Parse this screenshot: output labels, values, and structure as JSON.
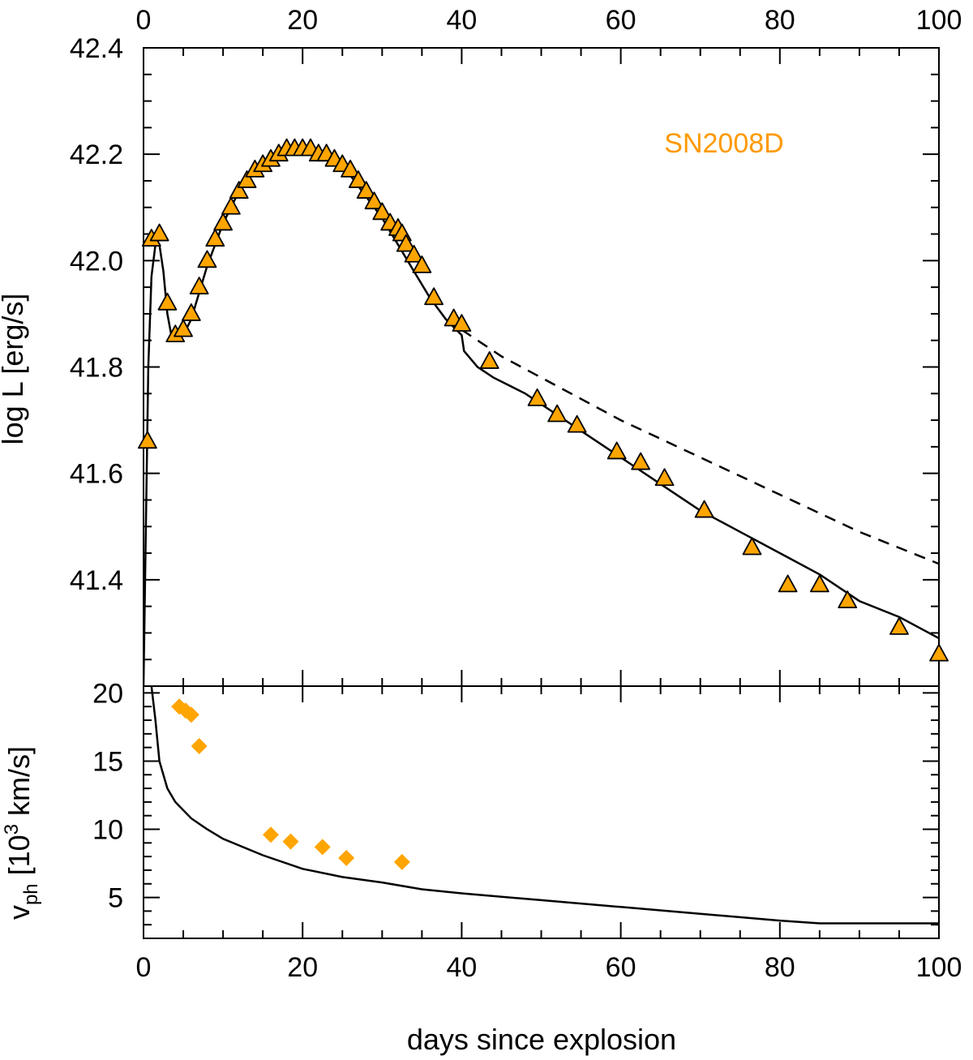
{
  "chart_data": [
    {
      "panel": "top",
      "type": "line",
      "title": "",
      "xlabel": "",
      "ylabel": "log L [erg/s]",
      "xlim": [
        0,
        100
      ],
      "ylim": [
        41.2,
        42.4
      ],
      "x_ticks": [
        "0",
        "20",
        "40",
        "60",
        "80",
        "100"
      ],
      "y_ticks": [
        "41.4",
        "41.6",
        "41.8",
        "42.0",
        "42.2",
        "42.4"
      ],
      "annotation": {
        "text": "SN2008D",
        "color": "#ff9900"
      },
      "series": [
        {
          "kind": "observed",
          "marker": "triangle",
          "color": "#ffa500",
          "points": [
            [
              0.5,
              41.66
            ],
            [
              1.0,
              42.04
            ],
            [
              2.0,
              42.05
            ],
            [
              3.0,
              41.92
            ],
            [
              4.0,
              41.86
            ],
            [
              5.0,
              41.87
            ],
            [
              6.0,
              41.9
            ],
            [
              7.0,
              41.95
            ],
            [
              8.0,
              42.0
            ],
            [
              9.0,
              42.04
            ],
            [
              10.0,
              42.07
            ],
            [
              11.0,
              42.1
            ],
            [
              12.0,
              42.13
            ],
            [
              13.0,
              42.15
            ],
            [
              14.0,
              42.17
            ],
            [
              15.0,
              42.18
            ],
            [
              16.0,
              42.19
            ],
            [
              17.0,
              42.2
            ],
            [
              18.0,
              42.21
            ],
            [
              19.0,
              42.21
            ],
            [
              20.0,
              42.21
            ],
            [
              21.0,
              42.21
            ],
            [
              22.0,
              42.2
            ],
            [
              23.0,
              42.2
            ],
            [
              24.0,
              42.19
            ],
            [
              25.0,
              42.18
            ],
            [
              26.0,
              42.17
            ],
            [
              27.0,
              42.15
            ],
            [
              28.0,
              42.13
            ],
            [
              29.0,
              42.11
            ],
            [
              30.0,
              42.09
            ],
            [
              31.0,
              42.07
            ],
            [
              32.0,
              42.06
            ],
            [
              32.5,
              42.05
            ],
            [
              33.0,
              42.03
            ],
            [
              34.0,
              42.01
            ],
            [
              35.0,
              41.99
            ],
            [
              36.5,
              41.93
            ],
            [
              39.0,
              41.89
            ],
            [
              40.0,
              41.88
            ],
            [
              43.5,
              41.81
            ],
            [
              49.5,
              41.74
            ],
            [
              52.0,
              41.71
            ],
            [
              54.5,
              41.69
            ],
            [
              59.5,
              41.64
            ],
            [
              62.5,
              41.62
            ],
            [
              65.5,
              41.59
            ],
            [
              70.5,
              41.53
            ],
            [
              76.5,
              41.46
            ],
            [
              81.0,
              41.39
            ],
            [
              85.0,
              41.39
            ],
            [
              88.5,
              41.36
            ],
            [
              95.0,
              41.31
            ],
            [
              100.0,
              41.26
            ]
          ]
        },
        {
          "kind": "model",
          "style": "solid",
          "points": [
            [
              0,
              41.2
            ],
            [
              0.3,
              41.5
            ],
            [
              0.6,
              41.8
            ],
            [
              1.0,
              41.97
            ],
            [
              1.5,
              42.03
            ],
            [
              2.0,
              42.03
            ],
            [
              2.5,
              41.98
            ],
            [
              3.0,
              41.9
            ],
            [
              3.5,
              41.86
            ],
            [
              4.0,
              41.85
            ],
            [
              5.0,
              41.86
            ],
            [
              6.0,
              41.89
            ],
            [
              7.0,
              41.94
            ],
            [
              8.0,
              41.99
            ],
            [
              9.0,
              42.03
            ],
            [
              10.0,
              42.07
            ],
            [
              12.0,
              42.13
            ],
            [
              14.0,
              42.17
            ],
            [
              16.0,
              42.19
            ],
            [
              18.0,
              42.2
            ],
            [
              20.0,
              42.2
            ],
            [
              22.0,
              42.2
            ],
            [
              24.0,
              42.19
            ],
            [
              26.0,
              42.16
            ],
            [
              28.0,
              42.12
            ],
            [
              30.0,
              42.08
            ],
            [
              32.0,
              42.03
            ],
            [
              34.0,
              41.98
            ],
            [
              36.0,
              41.93
            ],
            [
              38.0,
              41.89
            ],
            [
              40.0,
              41.86
            ],
            [
              40.3,
              41.83
            ],
            [
              42.0,
              41.8
            ],
            [
              44.0,
              41.78
            ],
            [
              48.0,
              41.75
            ],
            [
              52.0,
              41.71
            ],
            [
              56.0,
              41.67
            ],
            [
              60.0,
              41.63
            ],
            [
              65.0,
              41.58
            ],
            [
              70.0,
              41.53
            ],
            [
              75.0,
              41.49
            ],
            [
              80.0,
              41.45
            ],
            [
              85.0,
              41.41
            ],
            [
              90.0,
              41.36
            ],
            [
              95.0,
              41.33
            ],
            [
              100.0,
              41.29
            ]
          ]
        },
        {
          "kind": "model",
          "style": "dashed",
          "points": [
            [
              40.0,
              41.87
            ],
            [
              45.0,
              41.82
            ],
            [
              50.0,
              41.78
            ],
            [
              60.0,
              41.7
            ],
            [
              70.0,
              41.63
            ],
            [
              80.0,
              41.56
            ],
            [
              90.0,
              41.49
            ],
            [
              100.0,
              41.43
            ]
          ]
        }
      ]
    },
    {
      "panel": "bottom",
      "type": "line",
      "title": "",
      "xlabel": "days since explosion",
      "ylabel_parts": [
        "v",
        "ph",
        " [10",
        "3",
        " km/s]"
      ],
      "xlim": [
        0,
        100
      ],
      "ylim": [
        2,
        20.5
      ],
      "x_ticks": [
        "0",
        "20",
        "40",
        "60",
        "80",
        "100"
      ],
      "y_ticks": [
        "5",
        "10",
        "15",
        "20"
      ],
      "series": [
        {
          "kind": "observed",
          "marker": "diamond",
          "color": "#ffa500",
          "points": [
            [
              4.5,
              19.0
            ],
            [
              5.3,
              18.7
            ],
            [
              6.0,
              18.4
            ],
            [
              7.0,
              16.1
            ],
            [
              16.0,
              9.6
            ],
            [
              18.5,
              9.1
            ],
            [
              22.5,
              8.7
            ],
            [
              25.5,
              7.9
            ],
            [
              32.5,
              7.6
            ]
          ]
        },
        {
          "kind": "model",
          "style": "solid",
          "points": [
            [
              1.0,
              20.5
            ],
            [
              1.5,
              18.0
            ],
            [
              2.0,
              15.0
            ],
            [
              3.0,
              13.0
            ],
            [
              4.0,
              12.0
            ],
            [
              6.0,
              10.8
            ],
            [
              8.0,
              10.0
            ],
            [
              10.0,
              9.3
            ],
            [
              15.0,
              8.1
            ],
            [
              20.0,
              7.1
            ],
            [
              25.0,
              6.5
            ],
            [
              30.0,
              6.1
            ],
            [
              35.0,
              5.6
            ],
            [
              40.0,
              5.3
            ],
            [
              50.0,
              4.8
            ],
            [
              60.0,
              4.3
            ],
            [
              70.0,
              3.8
            ],
            [
              80.0,
              3.3
            ],
            [
              85.0,
              3.1
            ],
            [
              90.0,
              3.1
            ],
            [
              100.0,
              3.1
            ]
          ]
        }
      ]
    }
  ]
}
